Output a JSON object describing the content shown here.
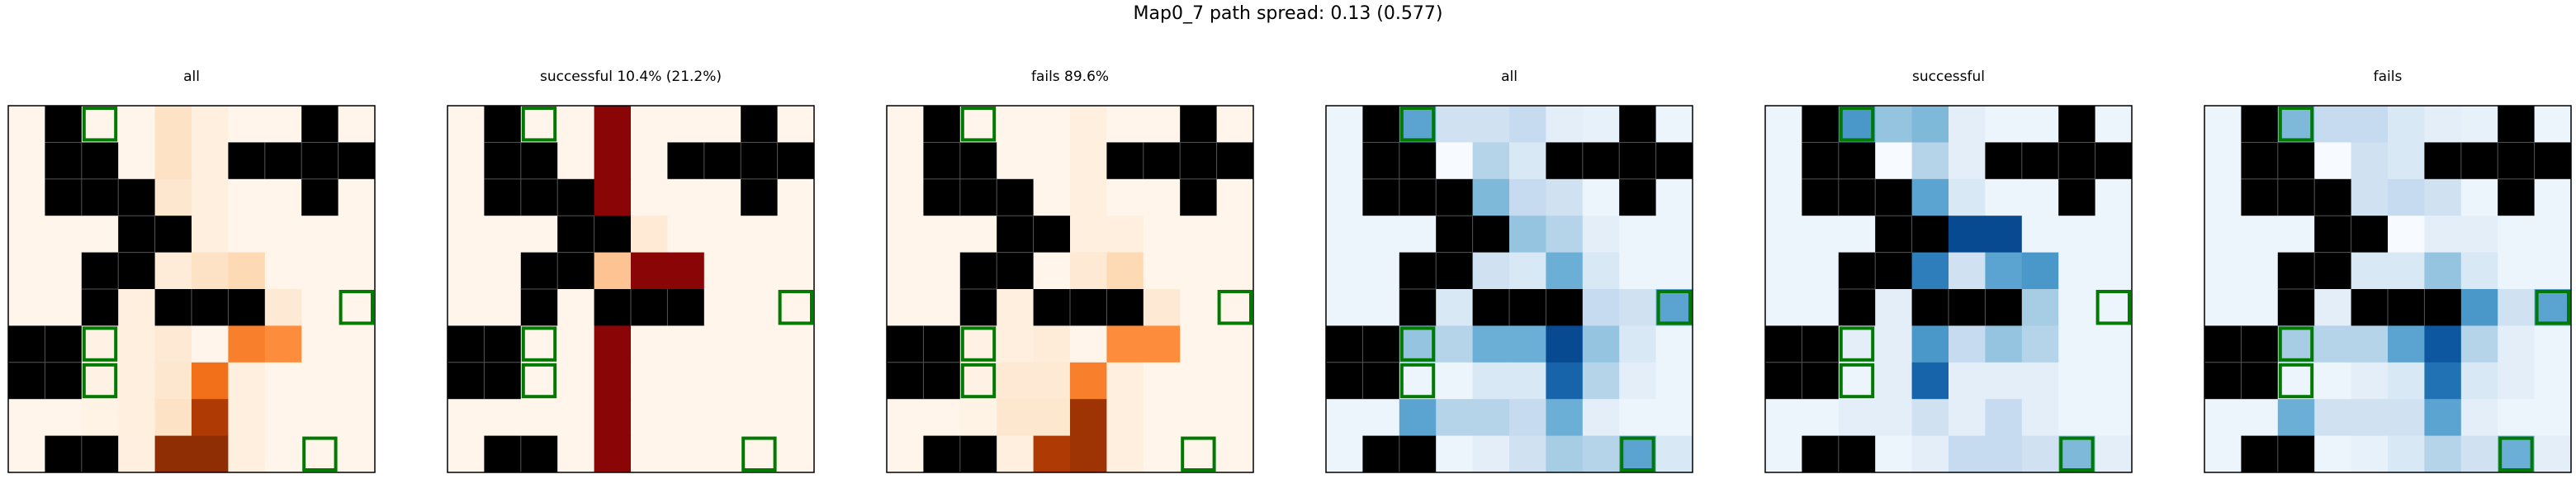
{
  "figure_title": "Map0_7 path spread: 0.13 (0.577)",
  "colors": {
    "wall": "#000000",
    "goal_outline": "#007a00",
    "frame": "#000000",
    "cmap_orange": [
      "#fff5eb",
      "#fee6ce",
      "#fdd0a2",
      "#fdae6b",
      "#fd8d3c",
      "#f16913",
      "#d94801",
      "#a63603",
      "#7f2704"
    ],
    "cmap_red": [
      "#fff5eb",
      "#fdd0a2",
      "#fc8d59",
      "#ef3b2c",
      "#cb181d",
      "#a50f15",
      "#7f0000"
    ],
    "cmap_blue": [
      "#f7fbff",
      "#deebf7",
      "#c6dbef",
      "#9ecae1",
      "#6baed6",
      "#4292c6",
      "#2171b5",
      "#08519c",
      "#08306b"
    ]
  },
  "chart_data": {
    "type": "heatmap",
    "grid": {
      "rows": 10,
      "cols": 10,
      "walls": [
        [
          0,
          1
        ],
        [
          0,
          8
        ],
        [
          1,
          1
        ],
        [
          1,
          2
        ],
        [
          1,
          6
        ],
        [
          1,
          7
        ],
        [
          1,
          8
        ],
        [
          1,
          9
        ],
        [
          2,
          1
        ],
        [
          2,
          2
        ],
        [
          2,
          3
        ],
        [
          2,
          8
        ],
        [
          3,
          3
        ],
        [
          3,
          4
        ],
        [
          4,
          2
        ],
        [
          4,
          3
        ],
        [
          5,
          2
        ],
        [
          5,
          4
        ],
        [
          5,
          5
        ],
        [
          5,
          6
        ],
        [
          6,
          0
        ],
        [
          6,
          1
        ],
        [
          7,
          0
        ],
        [
          7,
          1
        ],
        [
          9,
          1
        ],
        [
          9,
          2
        ]
      ],
      "goals": [
        [
          0,
          2
        ],
        [
          5,
          9
        ],
        [
          6,
          2
        ],
        [
          7,
          2
        ],
        [
          9,
          8
        ]
      ]
    },
    "panels": [
      {
        "title": "all",
        "cmap": "orange",
        "max": 1,
        "values": [
          [
            0,
            0,
            0,
            0,
            0.15,
            0.05,
            0,
            0,
            0,
            0
          ],
          [
            0,
            0,
            0,
            0,
            0.15,
            0.05,
            0,
            0,
            0,
            0
          ],
          [
            0,
            0,
            0,
            0,
            0.12,
            0.05,
            0,
            0,
            0,
            0
          ],
          [
            0,
            0,
            0,
            0,
            0.1,
            0.05,
            0,
            0,
            0,
            0
          ],
          [
            0,
            0,
            0,
            0,
            0.08,
            0.15,
            0.2,
            0,
            0,
            0
          ],
          [
            0,
            0,
            0,
            0.05,
            0.1,
            0.25,
            0.35,
            0.1,
            0,
            0
          ],
          [
            0,
            0,
            0.03,
            0.05,
            0.1,
            0,
            0.55,
            0.5,
            0,
            0
          ],
          [
            0,
            0,
            0.03,
            0.05,
            0.12,
            0.6,
            0.05,
            0,
            0,
            0
          ],
          [
            0,
            0,
            0.02,
            0.05,
            0.15,
            0.85,
            0.05,
            0,
            0,
            0
          ],
          [
            0,
            0,
            0,
            0.05,
            0.95,
            0.95,
            0.05,
            0,
            0,
            0
          ]
        ]
      },
      {
        "title": "successful 10.4% (21.2%)",
        "cmap": "red",
        "max": 1,
        "values": [
          [
            0,
            0,
            0,
            0,
            0.95,
            0,
            0,
            0,
            0,
            0
          ],
          [
            0,
            0,
            0,
            0,
            0.95,
            0,
            0,
            0,
            0,
            0
          ],
          [
            0,
            0,
            0,
            0,
            0.95,
            0,
            0,
            0,
            0,
            0
          ],
          [
            0,
            0,
            0,
            0,
            0.85,
            0.05,
            0,
            0,
            0,
            0
          ],
          [
            0,
            0,
            0,
            0,
            0.2,
            0.95,
            0.95,
            0,
            0,
            0
          ],
          [
            0,
            0,
            0,
            0,
            0.95,
            0.95,
            0.95,
            0,
            0,
            0
          ],
          [
            0,
            0,
            0,
            0,
            0.95,
            0,
            0,
            0,
            0,
            0
          ],
          [
            0,
            0,
            0,
            0,
            0.95,
            0,
            0,
            0,
            0,
            0
          ],
          [
            0,
            0,
            0,
            0,
            0.95,
            0,
            0,
            0,
            0,
            0
          ],
          [
            0,
            0,
            0,
            0,
            0.95,
            0,
            0,
            0,
            0,
            0
          ]
        ]
      },
      {
        "title": "fails 89.6%",
        "cmap": "orange",
        "max": 1,
        "values": [
          [
            0,
            0,
            0,
            0,
            0,
            0.05,
            0,
            0,
            0,
            0
          ],
          [
            0,
            0,
            0,
            0,
            0,
            0.05,
            0,
            0,
            0,
            0
          ],
          [
            0,
            0,
            0,
            0,
            0,
            0.05,
            0,
            0,
            0,
            0
          ],
          [
            0,
            0,
            0,
            0,
            0,
            0.05,
            0.05,
            0,
            0,
            0
          ],
          [
            0,
            0,
            0,
            0,
            0,
            0.1,
            0.2,
            0,
            0,
            0
          ],
          [
            0,
            0,
            0,
            0.05,
            0.05,
            0.25,
            0.3,
            0.1,
            0,
            0
          ],
          [
            0,
            0,
            0.03,
            0.05,
            0.08,
            0,
            0.5,
            0.5,
            0,
            0
          ],
          [
            0,
            0,
            0.03,
            0.1,
            0.1,
            0.55,
            0.05,
            0,
            0,
            0
          ],
          [
            0,
            0,
            0.02,
            0.12,
            0.12,
            0.9,
            0.05,
            0,
            0,
            0
          ],
          [
            0,
            0,
            0,
            0.05,
            0.85,
            0.9,
            0.05,
            0,
            0,
            0
          ]
        ]
      },
      {
        "title": "all",
        "cmap": "blue",
        "max": 1,
        "values": [
          [
            0.05,
            0,
            0.55,
            0.2,
            0.2,
            0.25,
            0.1,
            0.08,
            0,
            0.05
          ],
          [
            0.05,
            0,
            0,
            0,
            0.3,
            0.15,
            0.1,
            0,
            0,
            0
          ],
          [
            0.05,
            0,
            0,
            0,
            0.45,
            0.25,
            0.2,
            0.05,
            0,
            0.05
          ],
          [
            0.05,
            0.05,
            0.05,
            0,
            0,
            0.4,
            0.3,
            0.1,
            0.05,
            0.05
          ],
          [
            0.05,
            0.05,
            0,
            0,
            0.2,
            0.15,
            0.5,
            0.15,
            0.05,
            0.05
          ],
          [
            0.05,
            0.05,
            0,
            0.15,
            0,
            0,
            0,
            0.25,
            0.2,
            0.55
          ],
          [
            0,
            0,
            0.4,
            0.3,
            0.5,
            0.5,
            0.9,
            0.4,
            0.15,
            0.05
          ],
          [
            0,
            0,
            0.05,
            0.05,
            0.15,
            0.15,
            0.8,
            0.3,
            0.1,
            0.05
          ],
          [
            0.05,
            0.05,
            0.55,
            0.3,
            0.3,
            0.25,
            0.5,
            0.1,
            0.05,
            0.05
          ],
          [
            0.05,
            0,
            0,
            0.05,
            0.1,
            0.2,
            0.35,
            0.3,
            0.55,
            0.15
          ]
        ]
      },
      {
        "title": "successful",
        "cmap": "blue",
        "max": 1,
        "values": [
          [
            0.05,
            0,
            0.6,
            0.4,
            0.45,
            0.1,
            0.05,
            0.05,
            0,
            0.05
          ],
          [
            0.05,
            0,
            0,
            0,
            0.3,
            0.1,
            0.05,
            0,
            0,
            0
          ],
          [
            0.05,
            0,
            0,
            0,
            0.55,
            0.15,
            0.05,
            0.05,
            0,
            0.05
          ],
          [
            0.05,
            0.05,
            0.05,
            0,
            0,
            0.9,
            0.9,
            0.05,
            0.05,
            0.05
          ],
          [
            0.05,
            0.05,
            0,
            0,
            0.7,
            0.2,
            0.55,
            0.6,
            0.05,
            0.05
          ],
          [
            0.05,
            0.05,
            0.05,
            0.1,
            0,
            0,
            0.05,
            0.35,
            0.05,
            0.05
          ],
          [
            0.05,
            0.05,
            0.1,
            0.1,
            0.6,
            0.25,
            0.4,
            0.3,
            0.05,
            0.05
          ],
          [
            0.05,
            0.05,
            0.05,
            0.1,
            0.8,
            0.1,
            0.1,
            0.1,
            0.05,
            0.05
          ],
          [
            0.05,
            0.05,
            0.1,
            0.1,
            0.2,
            0.1,
            0.25,
            0.1,
            0.05,
            0.05
          ],
          [
            0.05,
            0.05,
            0.05,
            0.05,
            0.1,
            0.25,
            0.25,
            0.2,
            0.45,
            0.1
          ]
        ]
      },
      {
        "title": "fails",
        "cmap": "blue",
        "max": 1,
        "values": [
          [
            0.05,
            0,
            0.45,
            0.25,
            0.25,
            0.15,
            0.1,
            0.08,
            0,
            0.05
          ],
          [
            0.05,
            0,
            0,
            0,
            0.2,
            0.15,
            0.15,
            0,
            0,
            0
          ],
          [
            0.05,
            0,
            0,
            0,
            0.2,
            0.25,
            0.2,
            0.05,
            0,
            0.05
          ],
          [
            0.05,
            0.05,
            0.05,
            0,
            0.15,
            0,
            0.1,
            0.1,
            0.05,
            0.05
          ],
          [
            0.05,
            0.05,
            0,
            0,
            0.15,
            0.15,
            0.4,
            0.15,
            0.05,
            0.05
          ],
          [
            0.05,
            0.05,
            0,
            0.1,
            0,
            0,
            0,
            0.6,
            0.2,
            0.55
          ],
          [
            0,
            0,
            0.35,
            0.3,
            0.3,
            0.55,
            0.85,
            0.3,
            0.1,
            0.05
          ],
          [
            0,
            0,
            0.05,
            0.05,
            0.1,
            0.15,
            0.75,
            0.15,
            0.1,
            0.05
          ],
          [
            0.05,
            0.05,
            0.5,
            0.2,
            0.2,
            0.2,
            0.55,
            0.1,
            0.05,
            0.05
          ],
          [
            0.05,
            0,
            0,
            0.05,
            0.08,
            0.15,
            0.3,
            0.2,
            0.5,
            0.1
          ]
        ]
      }
    ]
  }
}
